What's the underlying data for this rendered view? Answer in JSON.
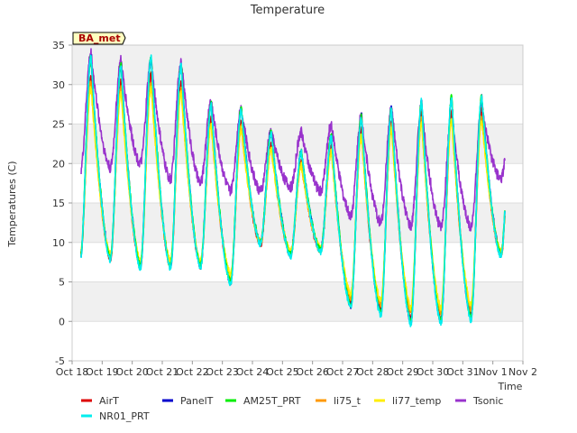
{
  "chart_data": {
    "type": "line",
    "title": "Temperature",
    "xlabel": "Time",
    "ylabel": "Temperatures (C)",
    "site_label": "BA_met",
    "ylim": [
      -5,
      35
    ],
    "yticks": [
      -5,
      0,
      5,
      10,
      15,
      20,
      25,
      30,
      35
    ],
    "xlim": [
      0,
      15
    ],
    "xtick_labels": [
      "Oct 18",
      "Oct 19",
      "Oct 20",
      "Oct 21",
      "Oct 22",
      "Oct 23",
      "Oct 24",
      "Oct 25",
      "Oct 26",
      "Oct 27",
      "Oct 28",
      "Oct 29",
      "Oct 30",
      "Oct 31",
      "Nov 1",
      "Nov 2"
    ],
    "x_range_days": [
      0.3,
      14.4
    ],
    "grid": "horizontal bands",
    "legend_position": "bottom",
    "daily_max": [
      33.5,
      32.5,
      33.5,
      32.5,
      27.5,
      27.0,
      24.0,
      21.5,
      23.5,
      26.0,
      27.0,
      28.0,
      28.5,
      28.5
    ],
    "daily_min": [
      8.0,
      8.0,
      7.0,
      7.0,
      7.0,
      5.0,
      10.0,
      8.5,
      9.0,
      2.0,
      1.0,
      0.0,
      0.0,
      0.5,
      8.5
    ],
    "tsonic_max": [
      34.0,
      33.0,
      33.0,
      33.0,
      28.0,
      27.0,
      24.0,
      24.0,
      25.0,
      26.0,
      27.0,
      27.0,
      26.0,
      27.0
    ],
    "tsonic_min": [
      19.0,
      19.5,
      20.0,
      18.0,
      17.5,
      16.5,
      16.5,
      17.0,
      16.5,
      13.5,
      12.5,
      12.0,
      12.0,
      12.0,
      18.0
    ],
    "series": [
      {
        "name": "AirT",
        "color": "#dd0000",
        "amp": 0.93,
        "off": 0.6
      },
      {
        "name": "PanelT",
        "color": "#0000cc",
        "amp": 1.0,
        "off": 0.0
      },
      {
        "name": "AM25T_PRT",
        "color": "#00ee00",
        "amp": 1.0,
        "off": 0.0
      },
      {
        "name": "li75_t",
        "color": "#ff9900",
        "amp": 0.9,
        "off": 1.2
      },
      {
        "name": "li77_temp",
        "color": "#ffee00",
        "amp": 0.88,
        "off": 1.8
      },
      {
        "name": "Tsonic",
        "color": "#9933cc",
        "amp": 1.0,
        "off": 0.0
      },
      {
        "name": "NR01_PRT",
        "color": "#00eeee",
        "amp": 1.0,
        "off": -0.3
      }
    ]
  }
}
